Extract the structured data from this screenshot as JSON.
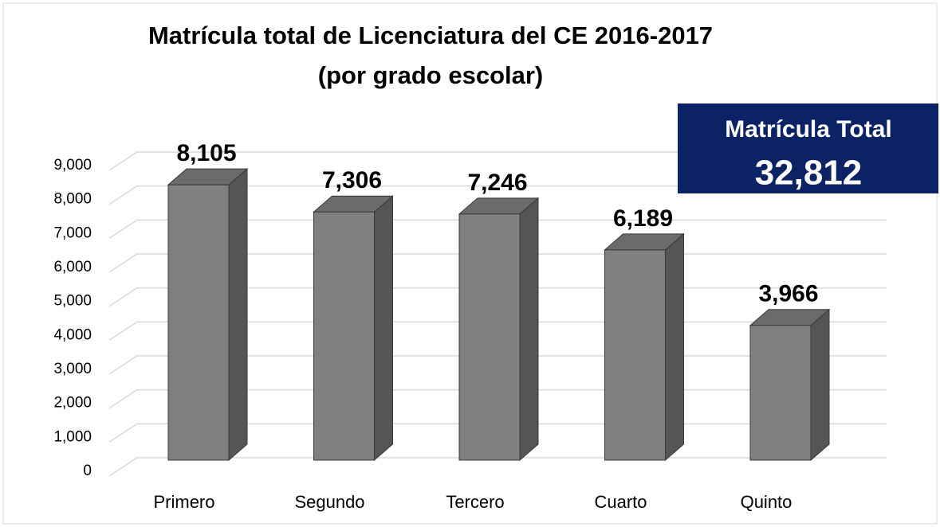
{
  "chart_data": {
    "type": "bar3d",
    "title": "Matrícula total de Licenciatura del CE 2016-2017",
    "subtitle": "(por grado escolar)",
    "categories": [
      "Primero",
      "Segundo",
      "Tercero",
      "Cuarto",
      "Quinto"
    ],
    "values": [
      8105,
      7306,
      7246,
      6189,
      3966
    ],
    "value_labels": [
      "8,105",
      "7,306",
      "7,246",
      "6,189",
      "3,966"
    ],
    "color": "#808080",
    "ylim": [
      0,
      9000
    ],
    "yticks": [
      0,
      {
        "value": 1000,
        "label": "1,000"
      },
      {
        "value": 2000,
        "label": "2,000"
      },
      {
        "value": 3000,
        "label": "3,000"
      },
      {
        "value": 4000,
        "label": "4,000"
      },
      {
        "value": 5000,
        "label": "5,000"
      },
      {
        "value": 6000,
        "label": "6,000"
      },
      {
        "value": 7000,
        "label": "7,000"
      },
      {
        "value": 8000,
        "label": "8,000"
      },
      {
        "value": 9000,
        "label": "9,000"
      }
    ],
    "grid": true,
    "annotation": {
      "title": "Matrícula Total",
      "text": "32,812"
    }
  }
}
